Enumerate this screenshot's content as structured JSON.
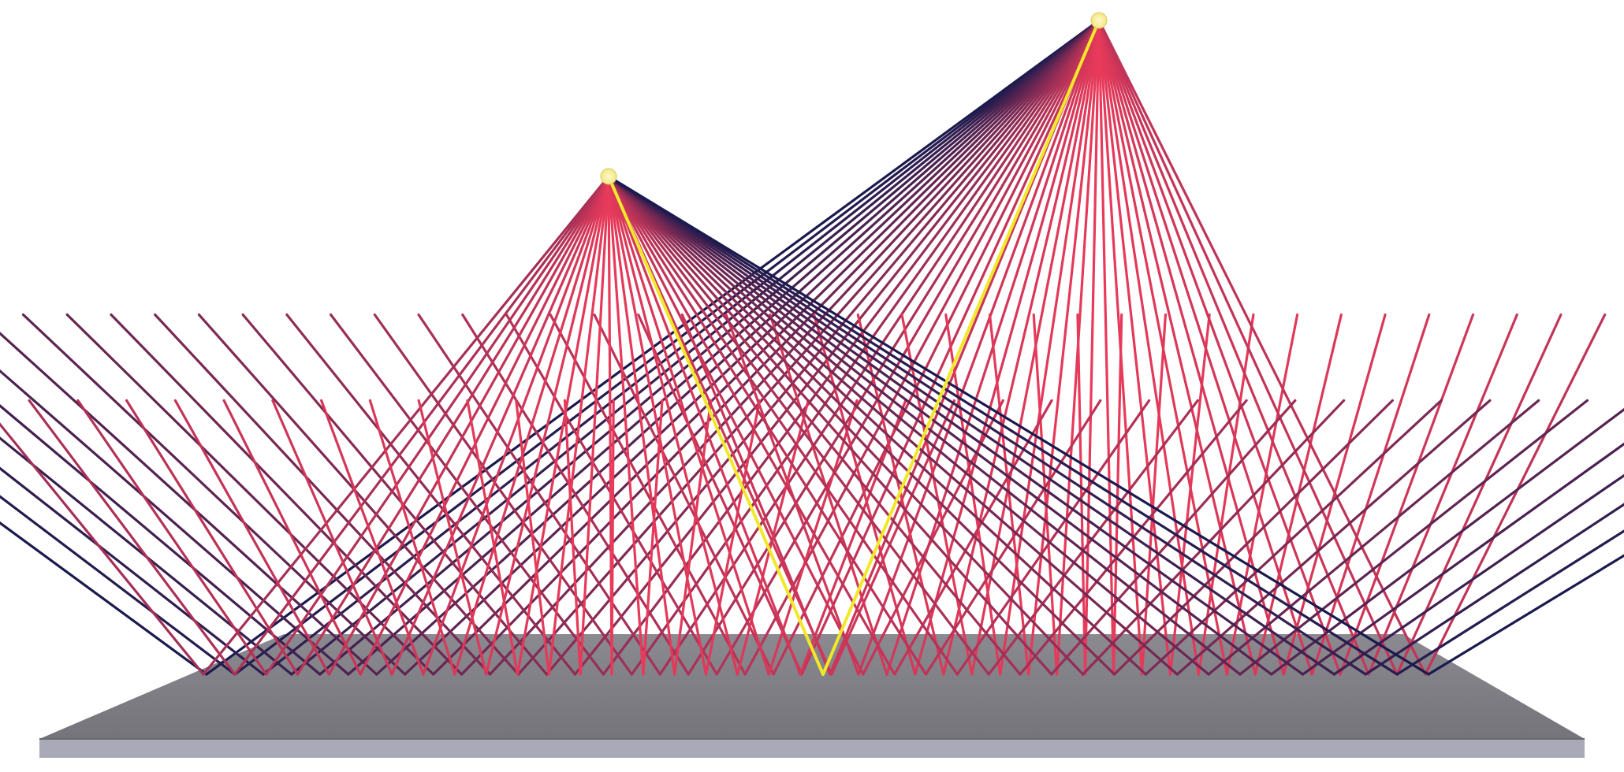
{
  "scene": {
    "description_type": "3d-ray-fan-render",
    "background_color": "#ffffff",
    "plate": {
      "top_color": "#7a7a80",
      "front_color": "#a9a9b8",
      "edge_color": "#5e5e66"
    },
    "sources": [
      {
        "id": "source-left",
        "color": "#fff3a0",
        "ray_count": 40
      },
      {
        "id": "source-right",
        "color": "#fff3a0",
        "ray_count": 44
      }
    ],
    "ray_colors": {
      "near": "#e83a5a",
      "far": "#1a1a4e"
    },
    "highlight": {
      "color": "#f2e82a",
      "label": ""
    }
  }
}
